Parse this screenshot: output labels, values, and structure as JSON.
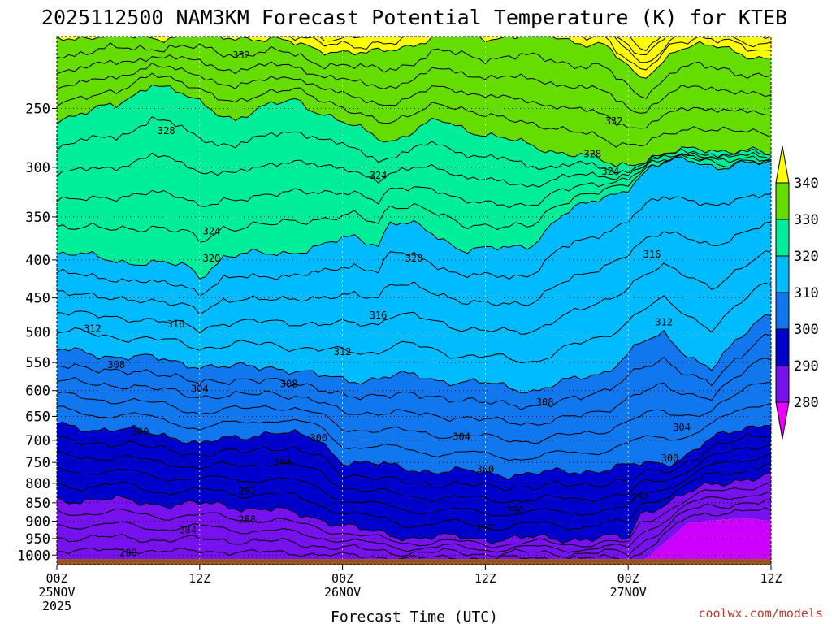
{
  "chart_data": {
    "type": "time-height contour",
    "title": "2025112500 NAM3KM Forecast Potential Temperature (K) for KTEB",
    "xlabel": "Forecast Time (UTC)",
    "ylabel": "",
    "y_levels_hpa": [
      250,
      300,
      350,
      400,
      450,
      500,
      550,
      600,
      650,
      700,
      750,
      800,
      850,
      900,
      950,
      1000
    ],
    "ylim": [
      200,
      1030
    ],
    "x_ticks": [
      {
        "hour": 0,
        "lines": [
          "00Z",
          "25NOV",
          "2025"
        ]
      },
      {
        "hour": 12,
        "lines": [
          "12Z"
        ]
      },
      {
        "hour": 24,
        "lines": [
          "00Z",
          "26NOV"
        ]
      },
      {
        "hour": 36,
        "lines": [
          "12Z"
        ]
      },
      {
        "hour": 48,
        "lines": [
          "00Z",
          "27NOV"
        ]
      },
      {
        "hour": 60,
        "lines": [
          "12Z"
        ]
      }
    ],
    "xlim": [
      0,
      60
    ],
    "colorbar": {
      "labels": [
        "340",
        "330",
        "320",
        "310",
        "300",
        "290",
        "280"
      ],
      "colors": [
        "#ffff00",
        "#66dd00",
        "#00ee99",
        "#00bbff",
        "#1177ee",
        "#0000cc",
        "#7711ee",
        "#cc00ff",
        "#ee00ff"
      ]
    },
    "fill_levels_K": [
      280,
      290,
      300,
      310,
      320,
      330,
      340
    ],
    "contour_interval_K": 2,
    "contour_labels": [
      {
        "text": "332",
        "hour": 15.5,
        "p": 212
      },
      {
        "text": "332",
        "hour": 46.8,
        "p": 260
      },
      {
        "text": "328",
        "hour": 9.2,
        "p": 268
      },
      {
        "text": "328",
        "hour": 45.0,
        "p": 288
      },
      {
        "text": "324",
        "hour": 27.0,
        "p": 308
      },
      {
        "text": "324",
        "hour": 46.5,
        "p": 304
      },
      {
        "text": "324",
        "hour": 13.0,
        "p": 366
      },
      {
        "text": "320",
        "hour": 13.0,
        "p": 398
      },
      {
        "text": "320",
        "hour": 30.0,
        "p": 398
      },
      {
        "text": "316",
        "hour": 50.0,
        "p": 393
      },
      {
        "text": "316",
        "hour": 10.0,
        "p": 488
      },
      {
        "text": "316",
        "hour": 27.0,
        "p": 475
      },
      {
        "text": "312",
        "hour": 3.0,
        "p": 495
      },
      {
        "text": "312",
        "hour": 51.0,
        "p": 485
      },
      {
        "text": "312",
        "hour": 24.0,
        "p": 532
      },
      {
        "text": "308",
        "hour": 5.0,
        "p": 554
      },
      {
        "text": "308",
        "hour": 19.5,
        "p": 588
      },
      {
        "text": "308",
        "hour": 41.0,
        "p": 622
      },
      {
        "text": "304",
        "hour": 12.0,
        "p": 597
      },
      {
        "text": "304",
        "hour": 34.0,
        "p": 692
      },
      {
        "text": "304",
        "hour": 52.5,
        "p": 673
      },
      {
        "text": "300",
        "hour": 7.0,
        "p": 682
      },
      {
        "text": "300",
        "hour": 22.0,
        "p": 695
      },
      {
        "text": "300",
        "hour": 36.0,
        "p": 766
      },
      {
        "text": "300",
        "hour": 51.5,
        "p": 740
      },
      {
        "text": "296",
        "hour": 19.0,
        "p": 752
      },
      {
        "text": "296",
        "hour": 38.5,
        "p": 870
      },
      {
        "text": "292",
        "hour": 16.0,
        "p": 820
      },
      {
        "text": "292",
        "hour": 36.0,
        "p": 920
      },
      {
        "text": "292",
        "hour": 49.0,
        "p": 835
      },
      {
        "text": "288",
        "hour": 16.0,
        "p": 895
      },
      {
        "text": "284",
        "hour": 11.0,
        "p": 925
      },
      {
        "text": "280",
        "hour": 6.0,
        "p": 993
      }
    ],
    "thermal_bands": [
      {
        "level": 340,
        "profile": [
          [
            0,
            200
          ],
          [
            10,
            200
          ],
          [
            16,
            200
          ],
          [
            26,
            212
          ],
          [
            32,
            200
          ],
          [
            42,
            200
          ],
          [
            46,
            206
          ],
          [
            49,
            228
          ],
          [
            52,
            208
          ],
          [
            56,
            206
          ],
          [
            60,
            216
          ]
        ]
      },
      {
        "level": 330,
        "profile": [
          [
            0,
            258
          ],
          [
            5,
            248
          ],
          [
            8,
            230
          ],
          [
            12,
            246
          ],
          [
            15,
            258
          ],
          [
            20,
            242
          ],
          [
            24,
            262
          ],
          [
            28,
            276
          ],
          [
            32,
            260
          ],
          [
            36,
            270
          ],
          [
            40,
            282
          ],
          [
            44,
            288
          ],
          [
            47,
            300
          ],
          [
            50,
            290
          ],
          [
            54,
            284
          ],
          [
            58,
            284
          ],
          [
            60,
            290
          ]
        ]
      },
      {
        "level": 320,
        "profile": [
          [
            0,
            392
          ],
          [
            4,
            398
          ],
          [
            8,
            405
          ],
          [
            11,
            408
          ],
          [
            12,
            420
          ],
          [
            14,
            396
          ],
          [
            18,
            392
          ],
          [
            22,
            385
          ],
          [
            25,
            372
          ],
          [
            27,
            380
          ],
          [
            28,
            355
          ],
          [
            30,
            360
          ],
          [
            34,
            385
          ],
          [
            38,
            388
          ],
          [
            40,
            380
          ],
          [
            42,
            350
          ],
          [
            46,
            330
          ],
          [
            48,
            318
          ],
          [
            50,
            300
          ],
          [
            53,
            292
          ],
          [
            56,
            300
          ],
          [
            60,
            296
          ]
        ]
      },
      {
        "level": 310,
        "profile": [
          [
            0,
            530
          ],
          [
            6,
            540
          ],
          [
            10,
            548
          ],
          [
            14,
            560
          ],
          [
            18,
            555
          ],
          [
            22,
            575
          ],
          [
            26,
            580
          ],
          [
            30,
            572
          ],
          [
            34,
            585
          ],
          [
            38,
            592
          ],
          [
            40,
            600
          ],
          [
            42,
            590
          ],
          [
            46,
            565
          ],
          [
            49,
            520
          ],
          [
            51,
            505
          ],
          [
            53,
            535
          ],
          [
            55,
            560
          ],
          [
            57,
            520
          ],
          [
            59,
            480
          ],
          [
            60,
            470
          ]
        ]
      },
      {
        "level": 300,
        "profile": [
          [
            0,
            668
          ],
          [
            6,
            680
          ],
          [
            10,
            690
          ],
          [
            12,
            710
          ],
          [
            14,
            700
          ],
          [
            18,
            680
          ],
          [
            22,
            700
          ],
          [
            24,
            745
          ],
          [
            28,
            760
          ],
          [
            32,
            770
          ],
          [
            36,
            775
          ],
          [
            40,
            778
          ],
          [
            44,
            770
          ],
          [
            48,
            760
          ],
          [
            52,
            745
          ],
          [
            55,
            700
          ],
          [
            58,
            670
          ],
          [
            60,
            660
          ]
        ]
      },
      {
        "level": 290,
        "profile": [
          [
            0,
            840
          ],
          [
            6,
            845
          ],
          [
            10,
            855
          ],
          [
            14,
            855
          ],
          [
            18,
            870
          ],
          [
            22,
            890
          ],
          [
            26,
            930
          ],
          [
            30,
            945
          ],
          [
            34,
            948
          ],
          [
            38,
            950
          ],
          [
            42,
            950
          ],
          [
            46,
            948
          ],
          [
            48,
            952
          ],
          [
            49,
            880
          ],
          [
            51,
            850
          ],
          [
            54,
            815
          ],
          [
            57,
            790
          ],
          [
            60,
            780
          ]
        ]
      },
      {
        "level": 280,
        "profile": [
          [
            0,
            1025
          ],
          [
            40,
            1025
          ],
          [
            49,
            1025
          ],
          [
            53,
            905
          ],
          [
            55,
            898
          ],
          [
            58,
            892
          ],
          [
            60,
            900
          ]
        ]
      }
    ],
    "ground": {
      "color": "#9b5326",
      "surface_hpa": 1012
    }
  },
  "footer": {
    "credit": "coolwx.com/models"
  }
}
